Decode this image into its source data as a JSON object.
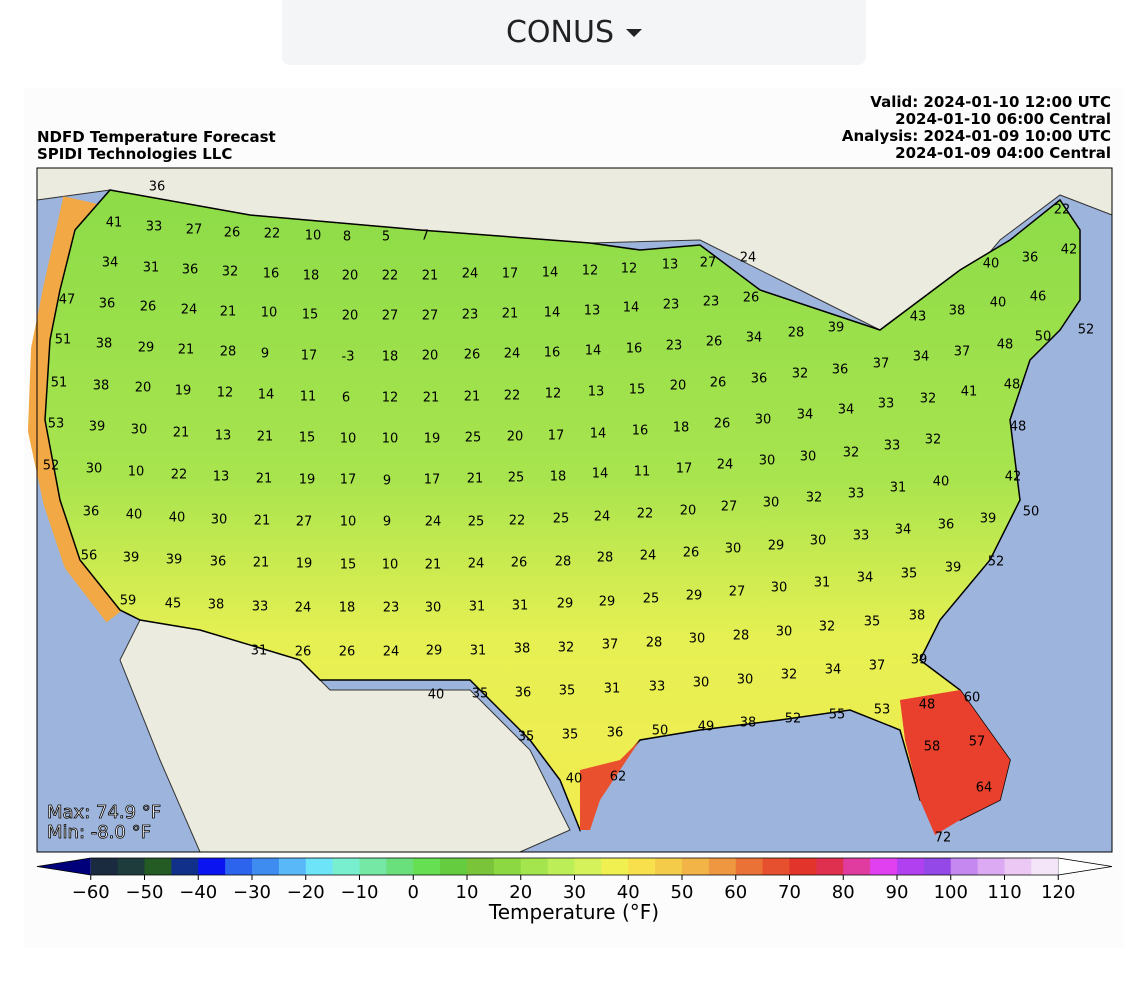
{
  "dropdown": {
    "label": "CONUS"
  },
  "header": {
    "title": "NDFD Temperature Forecast",
    "subtitle": "SPIDI Technologies LLC",
    "valid": "Valid: 2024-01-10 12:00 UTC",
    "valid_central": "2024-01-10 06:00 Central",
    "analysis": "Analysis: 2024-01-09 10:00 UTC",
    "analysis_central": "2024-01-09 04:00 Central"
  },
  "map": {
    "max_label": "Max: 74.9 °F",
    "min_label": "Min: -8.0 °F",
    "station_values": [
      36,
      41,
      33,
      27,
      26,
      22,
      10,
      8,
      5,
      7,
      22,
      34,
      31,
      36,
      32,
      16,
      18,
      20,
      22,
      21,
      24,
      17,
      14,
      12,
      12,
      13,
      27,
      24,
      40,
      36,
      42,
      47,
      36,
      26,
      24,
      21,
      10,
      15,
      20,
      27,
      27,
      23,
      21,
      14,
      13,
      14,
      23,
      23,
      26,
      40,
      46,
      43,
      38,
      52,
      51,
      38,
      29,
      21,
      28,
      9,
      17,
      -3,
      18,
      20,
      26,
      24,
      16,
      14,
      16,
      23,
      26,
      34,
      28,
      39,
      48,
      50,
      34,
      37,
      51,
      38,
      20,
      19,
      12,
      14,
      11,
      6,
      12,
      21,
      21,
      22,
      12,
      13,
      15,
      20,
      26,
      36,
      32,
      36,
      37,
      32,
      41,
      48,
      33,
      53,
      39,
      30,
      21,
      13,
      21,
      15,
      10,
      10,
      19,
      25,
      20,
      17,
      14,
      16,
      18,
      26,
      30,
      34,
      34,
      32,
      48,
      52,
      30,
      10,
      22,
      13,
      21,
      19,
      17,
      9,
      17,
      21,
      25,
      18,
      14,
      11,
      17,
      24,
      30,
      30,
      32,
      33,
      40,
      42,
      36,
      40,
      40,
      30,
      21,
      27,
      10,
      9,
      24,
      25,
      22,
      25,
      24,
      22,
      20,
      27,
      30,
      32,
      33,
      31,
      36,
      39,
      50,
      56,
      39,
      39,
      36,
      21,
      19,
      15,
      10,
      21,
      24,
      26,
      28,
      28,
      24,
      26,
      30,
      29,
      30,
      33,
      34,
      35,
      39,
      52,
      59,
      45,
      38,
      33,
      24,
      18,
      23,
      30,
      31,
      31,
      29,
      29,
      25,
      29,
      27,
      30,
      31,
      34,
      38,
      35,
      28,
      30,
      32,
      31,
      26,
      26,
      24,
      29,
      31,
      38,
      32,
      37,
      28,
      30,
      37,
      39,
      40,
      35,
      36,
      35,
      31,
      33,
      30,
      30,
      32,
      34,
      60,
      48,
      53,
      55,
      52,
      38,
      49,
      50,
      36,
      35,
      35,
      58,
      57,
      40,
      62,
      64,
      72
    ]
  },
  "colorbar": {
    "label": "Temperature (°F)",
    "xlim": [
      -70,
      130
    ],
    "xticks": [
      {
        "value": -60,
        "label": "−60"
      },
      {
        "value": -50,
        "label": "−50"
      },
      {
        "value": -40,
        "label": "−40"
      },
      {
        "value": -30,
        "label": "−30"
      },
      {
        "value": -20,
        "label": "−20"
      },
      {
        "value": -10,
        "label": "−10"
      },
      0,
      10,
      20,
      30,
      40,
      50,
      60,
      70,
      80,
      90,
      100,
      110,
      120
    ],
    "colors": [
      "#00007a",
      "#1a2b40",
      "#1e3c3c",
      "#245a24",
      "#10308a",
      "#0a14f0",
      "#2c64ee",
      "#3e8cf0",
      "#58b8f8",
      "#6ee4f8",
      "#78f0d0",
      "#74e8a4",
      "#6ae07c",
      "#66e052",
      "#64cc3e",
      "#7ac43a",
      "#8cd842",
      "#a4e44c",
      "#bcee58",
      "#d6f25a",
      "#f0f050",
      "#f8e04c",
      "#f4cc4a",
      "#f2b446",
      "#ee9640",
      "#ea7236",
      "#e6502e",
      "#e2342a",
      "#e03050",
      "#e03ca0",
      "#e040f0",
      "#b040f0",
      "#9448e8",
      "#c488f0",
      "#dcaaf2",
      "#ecc8f4",
      "#f4e6f8",
      "#ffffff"
    ]
  }
}
